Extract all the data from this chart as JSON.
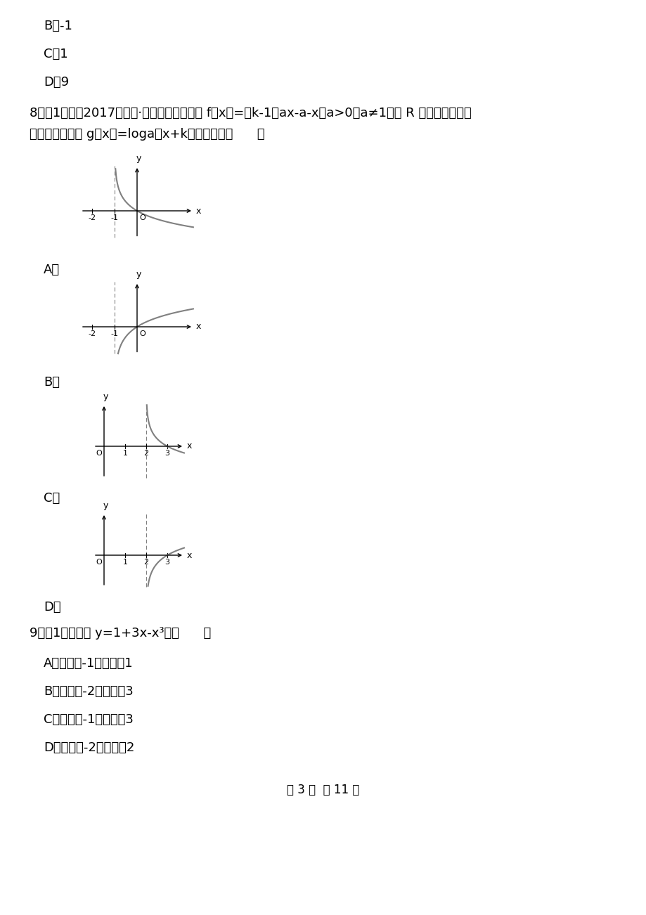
{
  "bg_color": "#ffffff",
  "line1": "B．-1",
  "line2": "C．1",
  "line3": "D．9",
  "q8_text1": "8．（1分）（2017高一上·深圳期末）若函数 f（x）=（k-1）ax-a-x（a>0，a≠1）在 R 上既是奇函数，",
  "q8_text2": "又是减函数，则 g（x）=loga（x+k）的图象是（      ）",
  "labelA": "A．",
  "labelB": "B．",
  "labelC": "C．",
  "labelD": "D．",
  "q9_text1": "9．（1分）函数 y=1+3x-x³有（      ）",
  "q9_A": "A．极小值-1，极大值1",
  "q9_B": "B．极小值-2，极大值3",
  "q9_C": "C．极小值-1，极大值3",
  "q9_D": "D．极小值-2，极大值2",
  "footer": "第 3 页  共 11 页"
}
